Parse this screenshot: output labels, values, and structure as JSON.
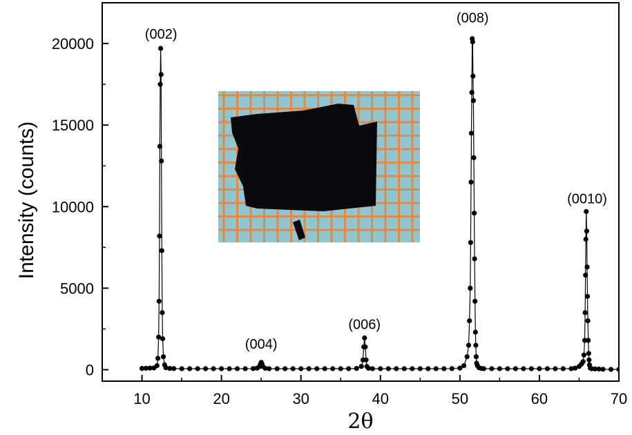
{
  "chart_data": {
    "type": "scatter",
    "title": "",
    "xlabel": "2θ",
    "ylabel": "Intensity (counts)",
    "xlim": [
      5,
      70
    ],
    "ylim": [
      -700,
      22500
    ],
    "x_ticks": [
      10,
      20,
      30,
      40,
      50,
      60,
      70
    ],
    "y_ticks": [
      0,
      5000,
      10000,
      15000,
      20000
    ],
    "grid": false,
    "legend": "none",
    "marker_color": "#000000",
    "line_color": "#000000",
    "series": [
      {
        "x": [
          10.0,
          10.5,
          11.0,
          11.5,
          11.9,
          12.0,
          12.1,
          12.15,
          12.2,
          12.25,
          12.3,
          12.35,
          12.4,
          12.45,
          12.5,
          12.55,
          12.6,
          12.7,
          12.85,
          13.0,
          13.5,
          14.0,
          15.0,
          16.0,
          17.0,
          18.0,
          19.0,
          20.0,
          21.0,
          22.0,
          23.0,
          24.0,
          24.5,
          24.8,
          24.9,
          25.0,
          25.1,
          25.2,
          25.5,
          26.0,
          27.0,
          28.0,
          29.0,
          30.0,
          31.0,
          32.0,
          33.0,
          34.0,
          35.0,
          36.0,
          37.0,
          37.6,
          37.8,
          37.9,
          38.0,
          38.1,
          38.2,
          38.3,
          38.5,
          39.0,
          40.0,
          41.0,
          42.0,
          43.0,
          44.0,
          45.0,
          46.0,
          47.0,
          48.0,
          49.0,
          50.0,
          50.5,
          50.9,
          51.1,
          51.2,
          51.3,
          51.35,
          51.4,
          51.45,
          51.5,
          51.55,
          51.6,
          51.65,
          51.7,
          51.75,
          51.8,
          51.85,
          51.9,
          51.95,
          52.0,
          52.05,
          52.1,
          52.2,
          52.4,
          52.7,
          53.0,
          54.0,
          55.0,
          56.0,
          57.0,
          58.0,
          59.0,
          60.0,
          61.0,
          62.0,
          63.0,
          64.0,
          64.5,
          65.0,
          65.3,
          65.5,
          65.6,
          65.7,
          65.75,
          65.8,
          65.85,
          65.9,
          65.95,
          66.0,
          66.05,
          66.1,
          66.15,
          66.2,
          66.25,
          66.3,
          66.4,
          66.6,
          67.0,
          67.5,
          68.0,
          69.0,
          70.0
        ],
        "y": [
          80,
          90,
          100,
          110,
          250,
          700,
          2000,
          4200,
          8200,
          13700,
          17500,
          19700,
          18100,
          12800,
          7300,
          3500,
          1900,
          800,
          300,
          120,
          80,
          70,
          60,
          60,
          60,
          60,
          60,
          60,
          60,
          60,
          60,
          70,
          100,
          200,
          330,
          450,
          350,
          200,
          90,
          60,
          60,
          60,
          60,
          60,
          60,
          60,
          60,
          60,
          60,
          60,
          80,
          200,
          600,
          1400,
          1950,
          1400,
          600,
          200,
          90,
          60,
          60,
          60,
          60,
          60,
          60,
          60,
          60,
          60,
          60,
          70,
          100,
          250,
          800,
          1500,
          3000,
          5000,
          7800,
          11500,
          14500,
          17000,
          20300,
          20100,
          18000,
          16500,
          13000,
          9600,
          6800,
          4200,
          2300,
          1500,
          800,
          400,
          250,
          120,
          80,
          60,
          60,
          60,
          60,
          60,
          60,
          60,
          60,
          60,
          60,
          60,
          60,
          100,
          200,
          350,
          500,
          900,
          1800,
          3500,
          5800,
          8000,
          9700,
          8500,
          6300,
          4500,
          3000,
          1800,
          1000,
          600,
          300,
          100,
          60,
          50,
          40,
          30,
          20,
          20
        ]
      }
    ],
    "annotations": [
      {
        "text": "(002)",
        "x": 12.4,
        "y": 20300
      },
      {
        "text": "(004)",
        "x": 25.0,
        "y": 1300
      },
      {
        "text": "(006)",
        "x": 38.0,
        "y": 2500
      },
      {
        "text": "(008)",
        "x": 51.6,
        "y": 21300
      },
      {
        "text": "(0010)",
        "x": 66.0,
        "y": 10200
      }
    ]
  },
  "inset": {
    "description_icon": "crystal-photo",
    "grid_background": "#8fc6cf",
    "grid_line_color": "#e08a4a",
    "crystal_color": "#0a0a0e"
  }
}
